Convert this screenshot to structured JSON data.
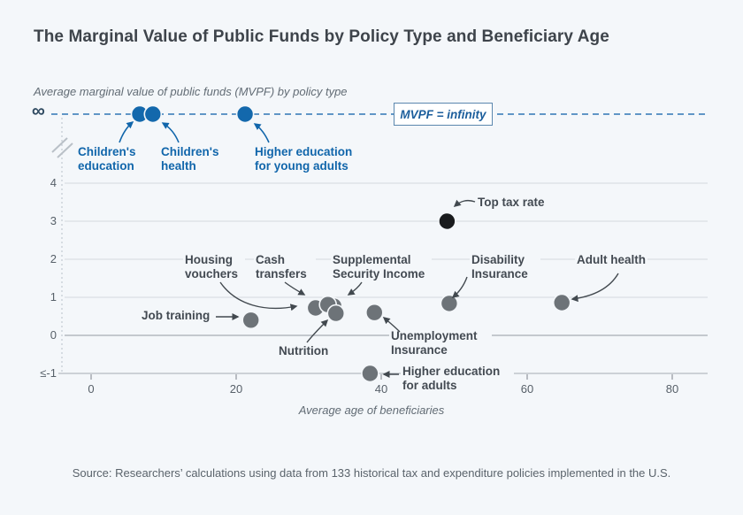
{
  "header": {
    "title": "The Marginal Value of Public Funds by Policy Type and Beneficiary Age"
  },
  "chart": {
    "y_axis_title": "Average marginal value of public funds (MVPF) by policy type",
    "x_axis_title": "Average age of beneficiaries",
    "infinity_symbol": "∞",
    "infinity_box_label": "MVPF = infinity",
    "y_ticks": [
      "4",
      "3",
      "2",
      "1",
      "0",
      "≤-1"
    ],
    "x_ticks": [
      "0",
      "20",
      "40",
      "60",
      "80"
    ]
  },
  "chart_data": {
    "type": "scatter",
    "title": "The Marginal Value of Public Funds by Policy Type and Beneficiary Age",
    "xlabel": "Average age of beneficiaries",
    "ylabel": "Average marginal value of public funds (MVPF) by policy type",
    "x_range": [
      0,
      80
    ],
    "y_range": [
      "≤-1",
      "infinity"
    ],
    "grid": true,
    "annotation": "MVPF = infinity",
    "colors": {
      "blue": "#1368ac",
      "gray": "#6d7378",
      "black": "#191b1d",
      "background": "#f4f7fa"
    },
    "points": [
      {
        "label": "Children's education",
        "age": 6.7,
        "mvpf": "infinity",
        "color": "#1368ac"
      },
      {
        "label": "Children's health",
        "age": 8.5,
        "mvpf": "infinity",
        "color": "#1368ac"
      },
      {
        "label": "Higher education for young adults",
        "age": 21.2,
        "mvpf": "infinity",
        "color": "#1368ac"
      },
      {
        "label": "Job training",
        "age": 22,
        "mvpf": 0.4,
        "color": "#6d7378"
      },
      {
        "label": "Housing vouchers",
        "age": 30.9,
        "mvpf": 0.72,
        "color": "#6d7378"
      },
      {
        "label": "Supplemental Security Income",
        "age": 33.4,
        "mvpf": 0.77,
        "color": "#6d7378"
      },
      {
        "label": "Cash transfers",
        "age": 32.6,
        "mvpf": 0.81,
        "color": "#6d7378"
      },
      {
        "label": "Nutrition",
        "age": 33.7,
        "mvpf": 0.58,
        "color": "#6d7378"
      },
      {
        "label": "Unemployment Insurance",
        "age": 39,
        "mvpf": 0.6,
        "color": "#6d7378"
      },
      {
        "label": "Disability Insurance",
        "age": 49.3,
        "mvpf": 0.84,
        "color": "#6d7378"
      },
      {
        "label": "Adult health",
        "age": 64.8,
        "mvpf": 0.86,
        "color": "#6d7378"
      },
      {
        "label": "Top tax rate",
        "age": 49,
        "mvpf": 3.0,
        "color": "#191b1d"
      },
      {
        "label": "Higher education for adults",
        "age": 38.4,
        "mvpf": -1,
        "mvpf_display": "≤-1",
        "color": "#6d7378"
      }
    ]
  },
  "footer": {
    "source": "Source: Researchers’ calculations using data from 133 historical tax and expenditure policies implemented in the U.S."
  }
}
